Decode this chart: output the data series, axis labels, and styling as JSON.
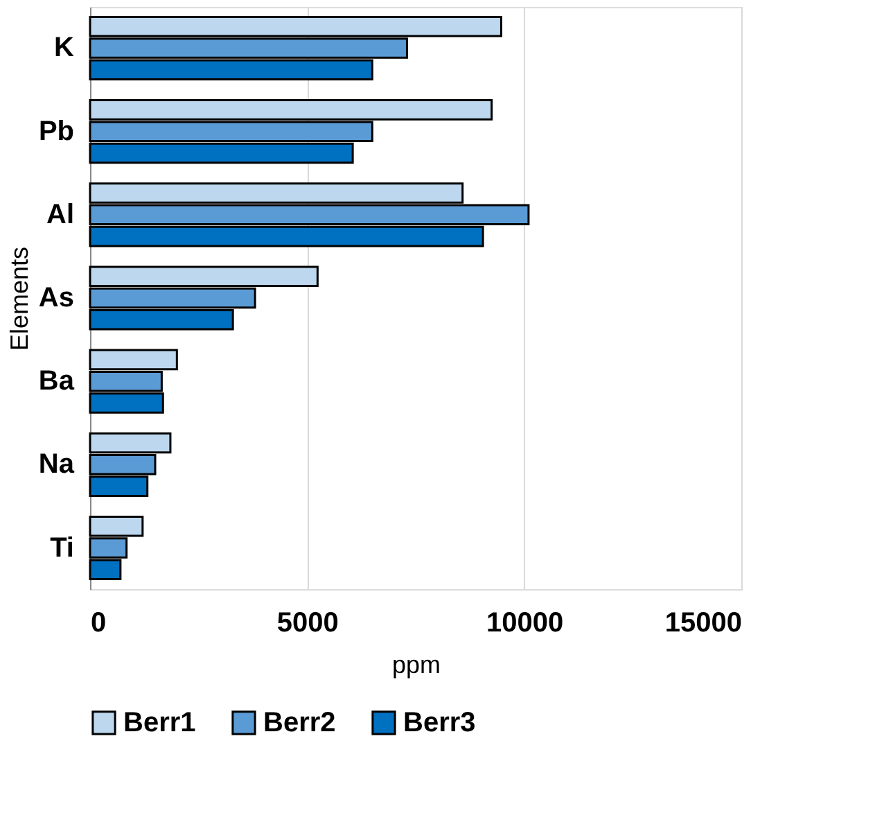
{
  "chart_data": {
    "type": "bar",
    "orientation": "horizontal",
    "xlabel": "ppm",
    "ylabel": "Elements",
    "categories": [
      "K",
      "Pb",
      "Al",
      "As",
      "Ba",
      "Na",
      "Ti"
    ],
    "series": [
      {
        "name": "Berr1",
        "color": "#bdd7ee",
        "values": [
          9470,
          9250,
          8580,
          5240,
          2000,
          1850,
          1210
        ]
      },
      {
        "name": "Berr2",
        "color": "#5b9bd5",
        "values": [
          7300,
          6500,
          10100,
          3800,
          1650,
          1500,
          840
        ]
      },
      {
        "name": "Berr3",
        "color": "#0070c0",
        "values": [
          6500,
          6050,
          9050,
          3290,
          1680,
          1320,
          700
        ]
      }
    ],
    "xlim": [
      0,
      15000
    ],
    "xticks": [
      0,
      5000,
      10000,
      15000
    ],
    "grid": "x",
    "legend": "bottom"
  }
}
